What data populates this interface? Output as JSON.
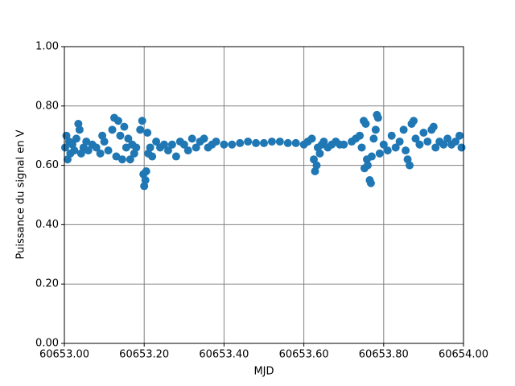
{
  "chart_data": {
    "type": "scatter",
    "xlabel": "MJD",
    "ylabel": "Puissance du signal en V",
    "color": "#1f77b4",
    "grid": true,
    "grid_color": "#808080",
    "xlim": [
      60653.0,
      60654.0
    ],
    "xticks": [
      {
        "value": 60653.0,
        "label": "60653.00"
      },
      {
        "value": 60653.2,
        "label": "60653.20"
      },
      {
        "value": 60653.4,
        "label": "60653.40"
      },
      {
        "value": 60653.6,
        "label": "60653.60"
      },
      {
        "value": 60653.8,
        "label": "60653.80"
      },
      {
        "value": 60654.0,
        "label": "60654.00"
      }
    ],
    "ylim": [
      0,
      1
    ],
    "yticks": [
      {
        "value": 0,
        "label": "0.00"
      },
      {
        "value": 0.2,
        "label": "0.20"
      },
      {
        "value": 0.4,
        "label": "0.40"
      },
      {
        "value": 0.6,
        "label": "0.60"
      },
      {
        "value": 0.8,
        "label": "0.80"
      },
      {
        "value": 1.0,
        "label": "1.00"
      }
    ],
    "x": [
      60653.002,
      60653.005,
      60653.008,
      60653.012,
      60653.015,
      60653.02,
      60653.025,
      60653.03,
      60653.035,
      60653.038,
      60653.042,
      60653.048,
      60653.055,
      60653.06,
      60653.07,
      60653.08,
      60653.09,
      60653.095,
      60653.1,
      60653.11,
      60653.12,
      60653.125,
      60653.13,
      60653.135,
      60653.14,
      60653.145,
      60653.15,
      60653.155,
      60653.16,
      60653.165,
      60653.17,
      60653.175,
      60653.18,
      60653.19,
      60653.195,
      60653.198,
      60653.2,
      60653.203,
      60653.205,
      60653.208,
      60653.21,
      60653.215,
      60653.22,
      60653.23,
      60653.24,
      60653.25,
      60653.26,
      60653.27,
      60653.28,
      60653.29,
      60653.3,
      60653.31,
      60653.32,
      60653.33,
      60653.34,
      60653.35,
      60653.36,
      60653.37,
      60653.38,
      60653.4,
      60653.42,
      60653.44,
      60653.46,
      60653.48,
      60653.5,
      60653.52,
      60653.54,
      60653.56,
      60653.58,
      60653.6,
      60653.61,
      60653.62,
      60653.625,
      60653.628,
      60653.632,
      60653.635,
      60653.64,
      60653.645,
      60653.65,
      60653.66,
      60653.67,
      60653.68,
      60653.69,
      60653.7,
      60653.72,
      60653.73,
      60653.74,
      60653.745,
      60653.75,
      60653.752,
      60653.755,
      60653.758,
      60653.76,
      60653.765,
      60653.768,
      60653.77,
      60653.775,
      60653.78,
      60653.783,
      60653.786,
      60653.79,
      60653.8,
      60653.81,
      60653.82,
      60653.83,
      60653.84,
      60653.85,
      60653.855,
      60653.86,
      60653.865,
      60653.87,
      60653.875,
      60653.88,
      60653.89,
      60653.9,
      60653.91,
      60653.92,
      60653.925,
      60653.93,
      60653.94,
      60653.95,
      60653.96,
      60653.97,
      60653.98,
      60653.99,
      60653.995
    ],
    "y": [
      0.66,
      0.7,
      0.62,
      0.68,
      0.64,
      0.67,
      0.65,
      0.69,
      0.74,
      0.72,
      0.64,
      0.66,
      0.68,
      0.65,
      0.67,
      0.66,
      0.64,
      0.7,
      0.68,
      0.65,
      0.72,
      0.76,
      0.63,
      0.75,
      0.7,
      0.62,
      0.73,
      0.66,
      0.69,
      0.62,
      0.67,
      0.64,
      0.66,
      0.72,
      0.75,
      0.57,
      0.53,
      0.55,
      0.58,
      0.71,
      0.64,
      0.66,
      0.63,
      0.68,
      0.66,
      0.67,
      0.65,
      0.67,
      0.63,
      0.68,
      0.67,
      0.65,
      0.69,
      0.66,
      0.68,
      0.69,
      0.66,
      0.67,
      0.68,
      0.67,
      0.67,
      0.675,
      0.68,
      0.675,
      0.675,
      0.68,
      0.68,
      0.675,
      0.675,
      0.67,
      0.68,
      0.69,
      0.62,
      0.58,
      0.6,
      0.66,
      0.64,
      0.67,
      0.68,
      0.66,
      0.67,
      0.68,
      0.67,
      0.67,
      0.68,
      0.69,
      0.7,
      0.66,
      0.75,
      0.59,
      0.74,
      0.62,
      0.6,
      0.55,
      0.54,
      0.63,
      0.69,
      0.72,
      0.77,
      0.76,
      0.64,
      0.67,
      0.65,
      0.7,
      0.66,
      0.68,
      0.72,
      0.65,
      0.62,
      0.6,
      0.74,
      0.75,
      0.69,
      0.67,
      0.71,
      0.68,
      0.72,
      0.73,
      0.66,
      0.68,
      0.67,
      0.69,
      0.67,
      0.68,
      0.7,
      0.66
    ]
  }
}
